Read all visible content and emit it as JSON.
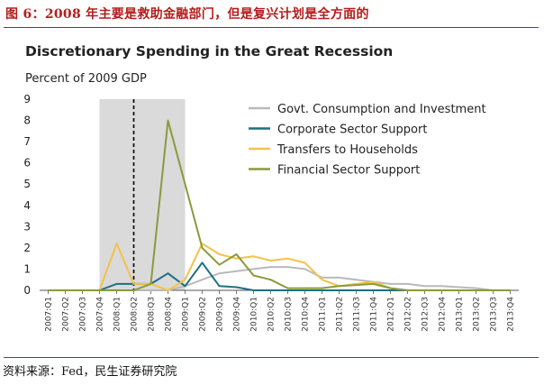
{
  "caption": "图 6：2008 年主要是救助金融部门，但是复兴计划是全方面的",
  "source": "资料来源：Fed，民生证券研究院",
  "colors": {
    "caption": "#b51c1c",
    "govt": "#b9b9b9",
    "corporate": "#1f6f83",
    "transfers": "#f2c24b",
    "financial": "#8a9a3c",
    "recession_shade": "#dadada",
    "marker_line": "#000000"
  },
  "chart_data": {
    "type": "line",
    "title": "Discretionary Spending in the Great Recession",
    "ylabel": "Percent of 2009 GDP",
    "xlabel": "",
    "ylim": [
      0,
      9
    ],
    "yticks": [
      0,
      1,
      2,
      3,
      4,
      5,
      6,
      7,
      8,
      9
    ],
    "grid": false,
    "legend_position": "top-right",
    "shaded_range": [
      "2007:Q4",
      "2009:Q1"
    ],
    "vertical_marker": "2008:Q2",
    "categories": [
      "2007:Q1",
      "2007:Q2",
      "2007:Q3",
      "2007:Q4",
      "2008:Q1",
      "2008:Q2",
      "2008:Q3",
      "2008:Q4",
      "2009:Q1",
      "2009:Q2",
      "2009:Q3",
      "2009:Q4",
      "2010:Q1",
      "2010:Q2",
      "2010:Q3",
      "2010:Q4",
      "2011:Q1",
      "2011:Q2",
      "2011:Q3",
      "2011:Q4",
      "2012:Q1",
      "2012:Q2",
      "2012:Q3",
      "2012:Q4",
      "2013:Q1",
      "2013:Q2",
      "2013:Q3",
      "2013:Q4"
    ],
    "series": [
      {
        "name": "Govt. Consumption and Investment",
        "color_key": "govt",
        "values": [
          0,
          0,
          0,
          0,
          0,
          0,
          0,
          0,
          0.2,
          0.5,
          0.8,
          0.9,
          1.0,
          1.1,
          1.1,
          1.0,
          0.6,
          0.6,
          0.5,
          0.4,
          0.3,
          0.3,
          0.2,
          0.2,
          0.15,
          0.1,
          0,
          0
        ]
      },
      {
        "name": "Corporate Sector Support",
        "color_key": "corporate",
        "values": [
          0,
          0,
          0,
          0,
          0.3,
          0.3,
          0.3,
          0.8,
          0.2,
          1.3,
          0.2,
          0.15,
          0,
          0,
          0,
          0,
          0,
          0,
          0,
          0,
          0,
          0,
          0,
          0,
          0,
          0,
          0,
          0
        ]
      },
      {
        "name": "Transfers to Households",
        "color_key": "transfers",
        "values": [
          0,
          0,
          0,
          0,
          2.2,
          0.3,
          0.3,
          0,
          0.5,
          2.2,
          1.7,
          1.5,
          1.6,
          1.4,
          1.5,
          1.3,
          0.5,
          0.2,
          0.3,
          0.4,
          0.1,
          0,
          0,
          0,
          0,
          0,
          0,
          0
        ]
      },
      {
        "name": "Financial Sector Support",
        "color_key": "financial",
        "values": [
          0,
          0,
          0,
          0,
          0,
          0,
          0.3,
          8.0,
          5.0,
          2.0,
          1.2,
          1.7,
          0.7,
          0.5,
          0.1,
          0.1,
          0.1,
          0.2,
          0.25,
          0.3,
          0.1,
          0,
          0,
          0,
          0,
          0,
          0,
          0
        ]
      }
    ]
  }
}
